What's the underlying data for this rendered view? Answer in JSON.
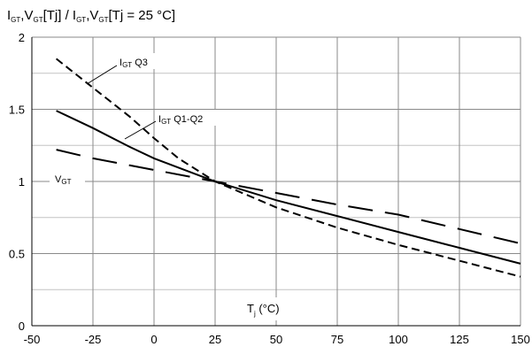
{
  "chart_data": {
    "type": "line",
    "title_parts": [
      "I",
      "GT",
      ",V",
      "GT",
      "[Tj] / I",
      "GT",
      ",V",
      "GT",
      "[Tj = 25 °C]"
    ],
    "xlabel_parts": [
      "T",
      "j",
      " (°C)"
    ],
    "xlim": [
      -50,
      150
    ],
    "ylim": [
      0,
      2
    ],
    "xticks": [
      -50,
      -25,
      0,
      25,
      50,
      75,
      100,
      125,
      150
    ],
    "yticks": [
      0,
      0.5,
      1,
      1.5,
      2
    ],
    "ytick_labels": [
      "0",
      "0.5",
      "1",
      "1.5",
      "2"
    ],
    "grid": true,
    "series": [
      {
        "name_parts": [
          "I",
          "GT",
          " Q3"
        ],
        "style": "short-dash",
        "x": [
          -40,
          -25,
          -10,
          0,
          10,
          25,
          50,
          75,
          100,
          125,
          150
        ],
        "y": [
          1.85,
          1.65,
          1.45,
          1.3,
          1.16,
          1.0,
          0.82,
          0.68,
          0.56,
          0.45,
          0.34
        ]
      },
      {
        "name_parts": [
          "I",
          "GT",
          " Q1-Q2"
        ],
        "style": "solid",
        "x": [
          -40,
          -25,
          -10,
          0,
          25,
          50,
          75,
          100,
          125,
          150
        ],
        "y": [
          1.49,
          1.37,
          1.24,
          1.16,
          1.0,
          0.87,
          0.76,
          0.65,
          0.54,
          0.43
        ]
      },
      {
        "name_parts": [
          "V",
          "GT"
        ],
        "style": "long-dash",
        "x": [
          -40,
          -25,
          0,
          25,
          50,
          75,
          100,
          125,
          150
        ],
        "y": [
          1.22,
          1.16,
          1.08,
          1.0,
          0.92,
          0.84,
          0.77,
          0.67,
          0.57
        ]
      }
    ]
  }
}
